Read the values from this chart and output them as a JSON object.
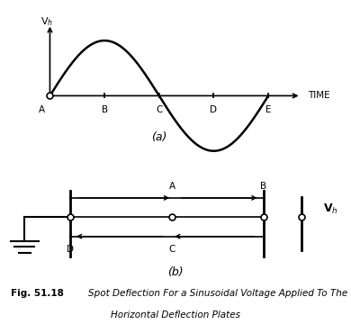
{
  "bg_color": "#ffffff",
  "fig_width": 3.9,
  "fig_height": 3.6,
  "dpi": 100,
  "panel_a": {
    "sine_color": "#000000",
    "axis_color": "#000000",
    "sine_amplitude": 1.0,
    "x_tick_labels": [
      "A",
      "B",
      "C",
      "D",
      "E"
    ],
    "x_tick_positions": [
      0,
      1,
      2,
      3,
      4
    ],
    "time_label": "TIME",
    "y_label": "V$_h$",
    "label_a": "(a)"
  },
  "panel_b": {
    "line_color": "#000000",
    "label_a": "A",
    "label_b": "B",
    "label_c": "C",
    "label_d": "D",
    "label_panel": "(b)",
    "vh_label": "V$_h$"
  },
  "caption_bold": "Fig. 51.18",
  "caption_italic1": "Spot Deflection For a Sinusoidal Voltage Applied To The",
  "caption_italic2": "Horizontal Deflection Plates"
}
